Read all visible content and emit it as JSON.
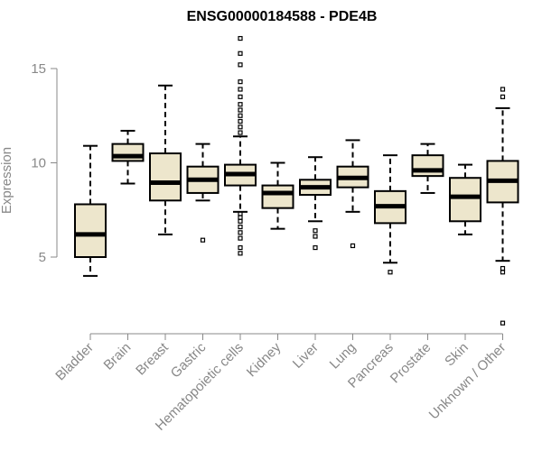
{
  "chart_data": {
    "type": "boxplot",
    "title": "ENSG00000184588 - PDE4B",
    "ylabel": "Expression",
    "xlabel": "",
    "ylim": [
      1,
      17
    ],
    "yticks": [
      5,
      10,
      15
    ],
    "grid": false,
    "box_color": "#ede6cc",
    "axis_color": "#888888",
    "categories": [
      "Bladder",
      "Brain",
      "Breast",
      "Gastric",
      "Hematopoietic cells",
      "Kidney",
      "Liver",
      "Lung",
      "Pancreas",
      "Prostate",
      "Skin",
      "Unknown / Other"
    ],
    "boxes": [
      {
        "min": 4.0,
        "q1": 5.0,
        "median": 6.2,
        "q3": 7.8,
        "max": 10.9,
        "outliers": []
      },
      {
        "min": 8.9,
        "q1": 10.1,
        "median": 10.35,
        "q3": 11.0,
        "max": 11.7,
        "outliers": []
      },
      {
        "min": 6.2,
        "q1": 8.0,
        "median": 8.95,
        "q3": 10.5,
        "max": 14.1,
        "outliers": []
      },
      {
        "min": 8.0,
        "q1": 8.4,
        "median": 9.1,
        "q3": 9.8,
        "max": 11.0,
        "outliers": [
          5.9
        ]
      },
      {
        "min": 7.4,
        "q1": 8.8,
        "median": 9.4,
        "q3": 9.9,
        "max": 11.4,
        "outliers": [
          5.2,
          5.5,
          6.0,
          6.3,
          6.6,
          6.9,
          7.1,
          7.3,
          11.6,
          11.9,
          12.2,
          12.5,
          12.8,
          13.1,
          13.5,
          13.9,
          14.3,
          15.2,
          15.8,
          16.6
        ]
      },
      {
        "min": 6.5,
        "q1": 7.6,
        "median": 8.4,
        "q3": 8.8,
        "max": 10.0,
        "outliers": []
      },
      {
        "min": 6.9,
        "q1": 8.3,
        "median": 8.7,
        "q3": 9.1,
        "max": 10.3,
        "outliers": [
          5.5,
          6.1,
          6.4
        ]
      },
      {
        "min": 7.4,
        "q1": 8.7,
        "median": 9.2,
        "q3": 9.8,
        "max": 11.2,
        "outliers": [
          5.6
        ]
      },
      {
        "min": 4.7,
        "q1": 6.8,
        "median": 7.7,
        "q3": 8.5,
        "max": 10.4,
        "outliers": [
          4.2
        ]
      },
      {
        "min": 8.4,
        "q1": 9.3,
        "median": 9.6,
        "q3": 10.4,
        "max": 11.0,
        "outliers": []
      },
      {
        "min": 6.2,
        "q1": 6.9,
        "median": 8.2,
        "q3": 9.2,
        "max": 9.9,
        "outliers": []
      },
      {
        "min": 4.8,
        "q1": 7.9,
        "median": 9.05,
        "q3": 10.1,
        "max": 12.9,
        "outliers": [
          1.5,
          4.2,
          4.4,
          13.5,
          13.9
        ]
      }
    ]
  }
}
